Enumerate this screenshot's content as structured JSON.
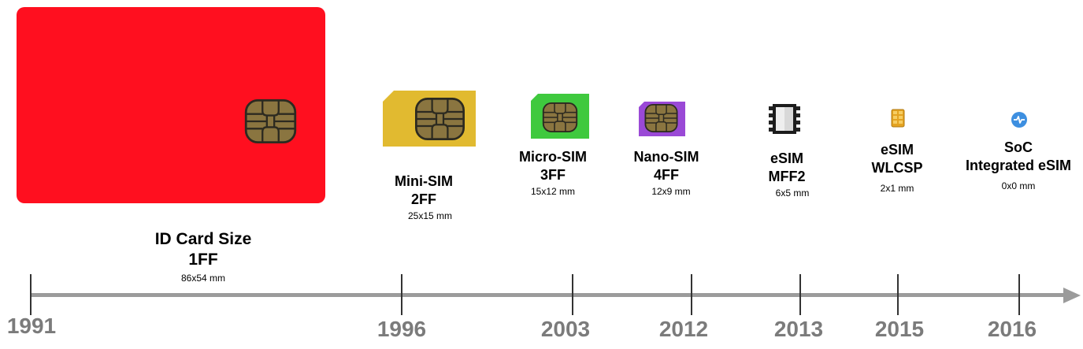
{
  "items": [
    {
      "name_line1": "ID Card Size",
      "name_line2": "1FF",
      "size": "86x54 mm",
      "year": "1991",
      "color": "#ff0f1f"
    },
    {
      "name_line1": "Mini-SIM",
      "name_line2": "2FF",
      "size": "25x15 mm",
      "year": "1996",
      "color": "#e1ba30"
    },
    {
      "name_line1": "Micro-SIM",
      "name_line2": "3FF",
      "size": "15x12 mm",
      "year": "2003",
      "color": "#3fc93e"
    },
    {
      "name_line1": "Nano-SIM",
      "name_line2": "4FF",
      "size": "12x9 mm",
      "year": "2012",
      "color": "#9a49d6"
    },
    {
      "name_line1": "eSIM",
      "name_line2": "MFF2",
      "size": "6x5 mm",
      "year": "2013",
      "icon": "chip-package-icon"
    },
    {
      "name_line1": "eSIM",
      "name_line2": "WLCSP",
      "size": "2x1 mm",
      "year": "2015",
      "icon": "gold-chip-icon"
    },
    {
      "name_line1": "SoC",
      "name_line2": "Integrated eSIM",
      "size": "0x0 mm",
      "year": "2016",
      "icon": "soc-pulse-icon"
    }
  ],
  "timeline": {
    "color": "#9b9b9b"
  }
}
